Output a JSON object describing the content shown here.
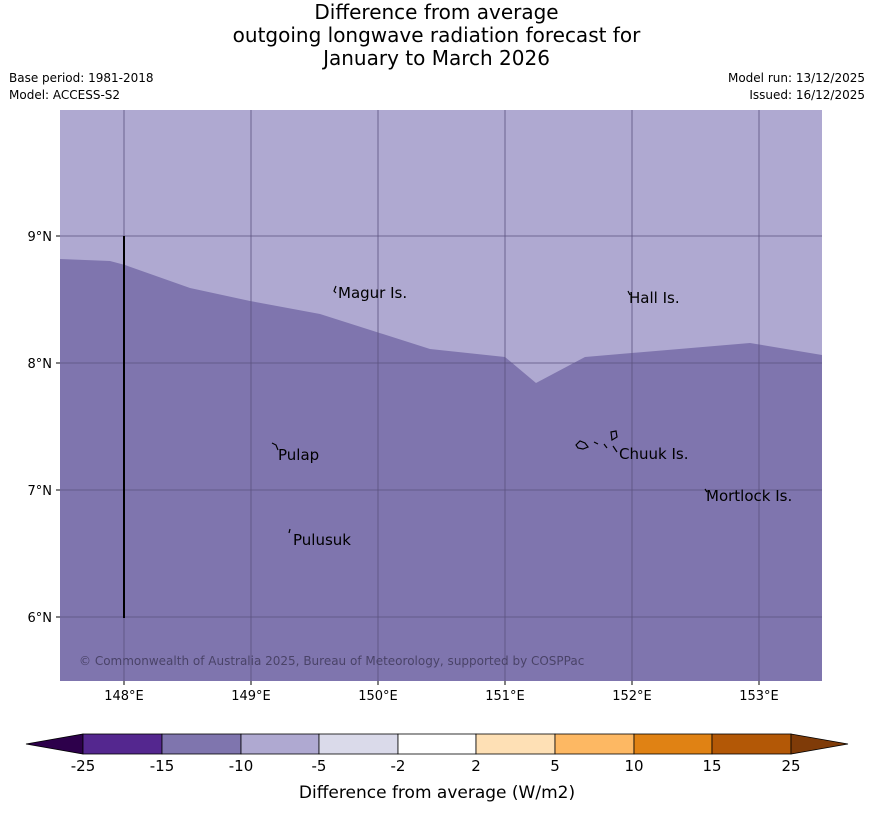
{
  "header": {
    "title_lines": [
      "Difference from average",
      "outgoing longwave radiation forecast for",
      "January to March 2026"
    ],
    "base_period": "Base period: 1981-2018",
    "model": "Model: ACCESS-S2",
    "model_run": "Model run: 13/12/2025",
    "issued": "Issued: 16/12/2025"
  },
  "map": {
    "lon_ticks": [
      "148°E",
      "149°E",
      "150°E",
      "151°E",
      "152°E",
      "153°E"
    ],
    "lat_ticks": [
      "9°N",
      "8°N",
      "7°N",
      "6°N"
    ],
    "places": [
      {
        "name": "Magur Is.",
        "lon": 149.68,
        "lat": 8.57
      },
      {
        "name": "Hall Is.",
        "lon": 151.97,
        "lat": 8.53
      },
      {
        "name": "Pulap",
        "lon": 149.19,
        "lat": 7.33
      },
      {
        "name": "Chuuk Is.",
        "lon": 151.85,
        "lat": 7.35
      },
      {
        "name": "Mortlock Is.",
        "lon": 152.6,
        "lat": 7.0
      },
      {
        "name": "Pulusuk",
        "lon": 149.32,
        "lat": 6.66
      }
    ],
    "copyright": "© Commonwealth of Australia 2025, Bureau of Meteorology, supported by COSPPac",
    "colors": {
      "upper_region": "#afa9d1",
      "lower_region": "#7f75ae",
      "grid": "#5a527e"
    }
  },
  "colorbar": {
    "title": "Difference from average (W/m2)",
    "tick_labels": [
      "-25",
      "-15",
      "-10",
      "-5",
      "-2",
      "2",
      "5",
      "10",
      "15",
      "25"
    ],
    "segment_colors": [
      "#54278f",
      "#7f75ae",
      "#afa9d1",
      "#dadaea",
      "#ffffff",
      "#fee0b5",
      "#fdb863",
      "#e08214",
      "#b35806"
    ],
    "left_extend_color": "#2d004b",
    "right_extend_color": "#7f3b08"
  }
}
